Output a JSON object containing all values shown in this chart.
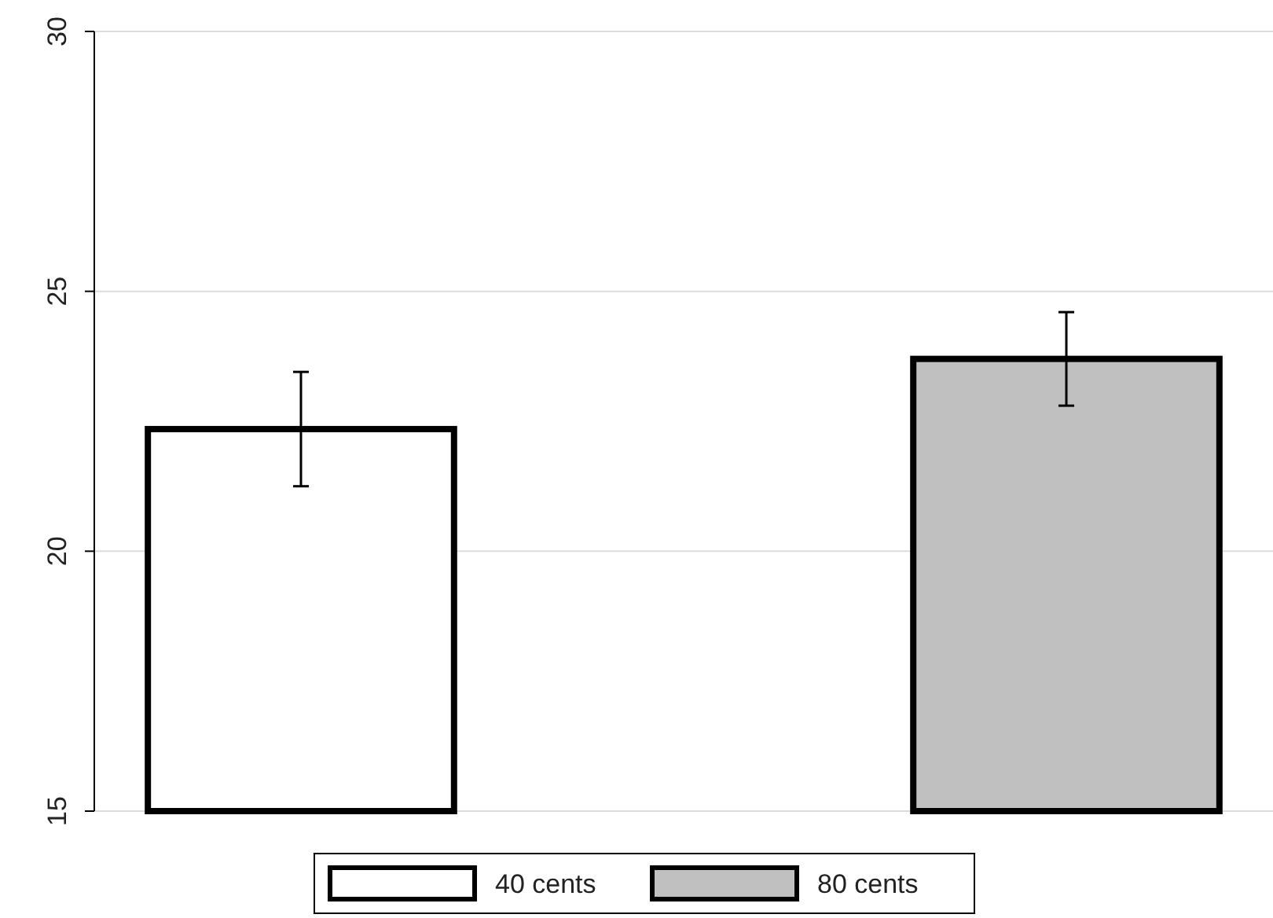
{
  "chart_data": {
    "type": "bar",
    "categories": [
      null,
      null
    ],
    "series": [
      {
        "name": "40 cents",
        "color": "#ffffff",
        "values": [
          22.35,
          null
        ],
        "errors": [
          1.1,
          null
        ]
      },
      {
        "name": "80 cents",
        "color": "#c0c0c0",
        "values": [
          null,
          23.7
        ],
        "errors": [
          null,
          0.9
        ]
      }
    ],
    "ylim": [
      15,
      30
    ],
    "yticks": [
      15,
      20,
      25,
      30
    ],
    "grid": "y",
    "legend": "bottom"
  }
}
